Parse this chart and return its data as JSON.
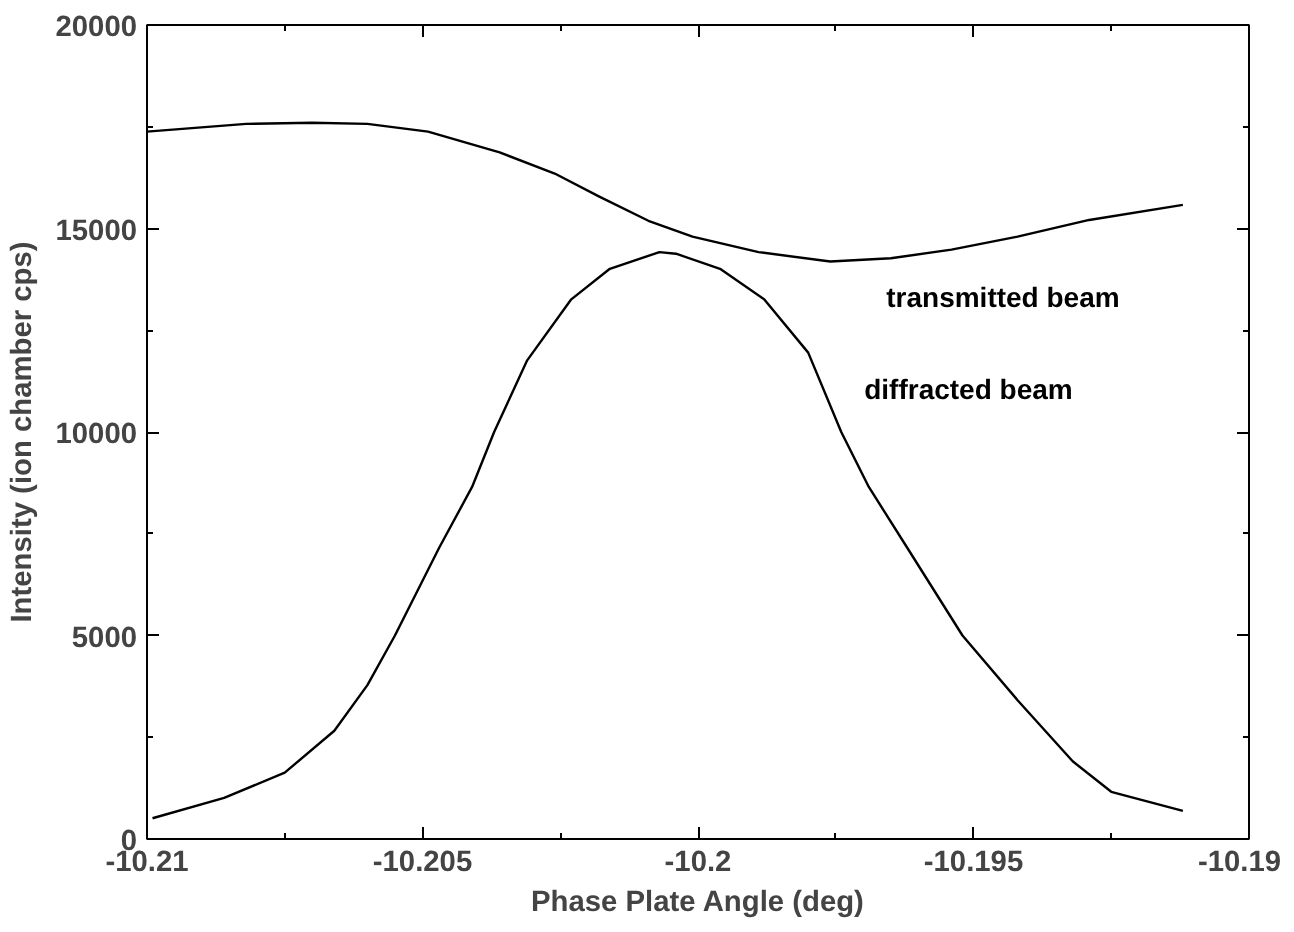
{
  "chart_data": {
    "type": "line",
    "xlabel": "Phase Plate Angle (deg)",
    "ylabel": "Intensity (ion chamber cps)",
    "xlim": [
      -10.21,
      -10.19
    ],
    "xticks": [
      -10.21,
      -10.205,
      -10.2,
      -10.195,
      -10.19
    ],
    "ylim": [
      0,
      20000
    ],
    "yticks": [
      0,
      5000,
      10000,
      15000,
      20000
    ],
    "grid": false,
    "marker": "none",
    "line_style": "solid",
    "series": [
      {
        "name": "transmitted beam",
        "color": "#000000",
        "x": [
          -10.21,
          -10.2082,
          -10.207,
          -10.206,
          -10.2049,
          -10.2036,
          -10.2026,
          -10.2018,
          -10.2009,
          -10.2001,
          -10.1989,
          -10.1976,
          -10.1965,
          -10.1954,
          -10.1942,
          -10.1929,
          -10.1912
        ],
        "values": [
          17380,
          17570,
          17600,
          17570,
          17380,
          16870,
          16350,
          15790,
          15190,
          14800,
          14420,
          14190,
          14270,
          14480,
          14800,
          15210,
          15580
        ]
      },
      {
        "name": "diffracted beam",
        "color": "#000000",
        "x": [
          -10.2099,
          -10.2086,
          -10.2075,
          -10.2066,
          -10.206,
          -10.2055,
          -10.2047,
          -10.2041,
          -10.2037,
          -10.2031,
          -10.2023,
          -10.2016,
          -10.2007,
          -10.2004,
          -10.1996,
          -10.1988,
          -10.198,
          -10.1974,
          -10.1969,
          -10.1962,
          -10.1952,
          -10.1942,
          -10.1932,
          -10.1925,
          -10.1912
        ],
        "values": [
          510,
          1010,
          1630,
          2660,
          3780,
          5000,
          7150,
          8650,
          10000,
          11760,
          13260,
          14010,
          14420,
          14380,
          14010,
          13260,
          11950,
          10000,
          8650,
          7150,
          5000,
          3410,
          1910,
          1160,
          690
        ]
      }
    ]
  }
}
